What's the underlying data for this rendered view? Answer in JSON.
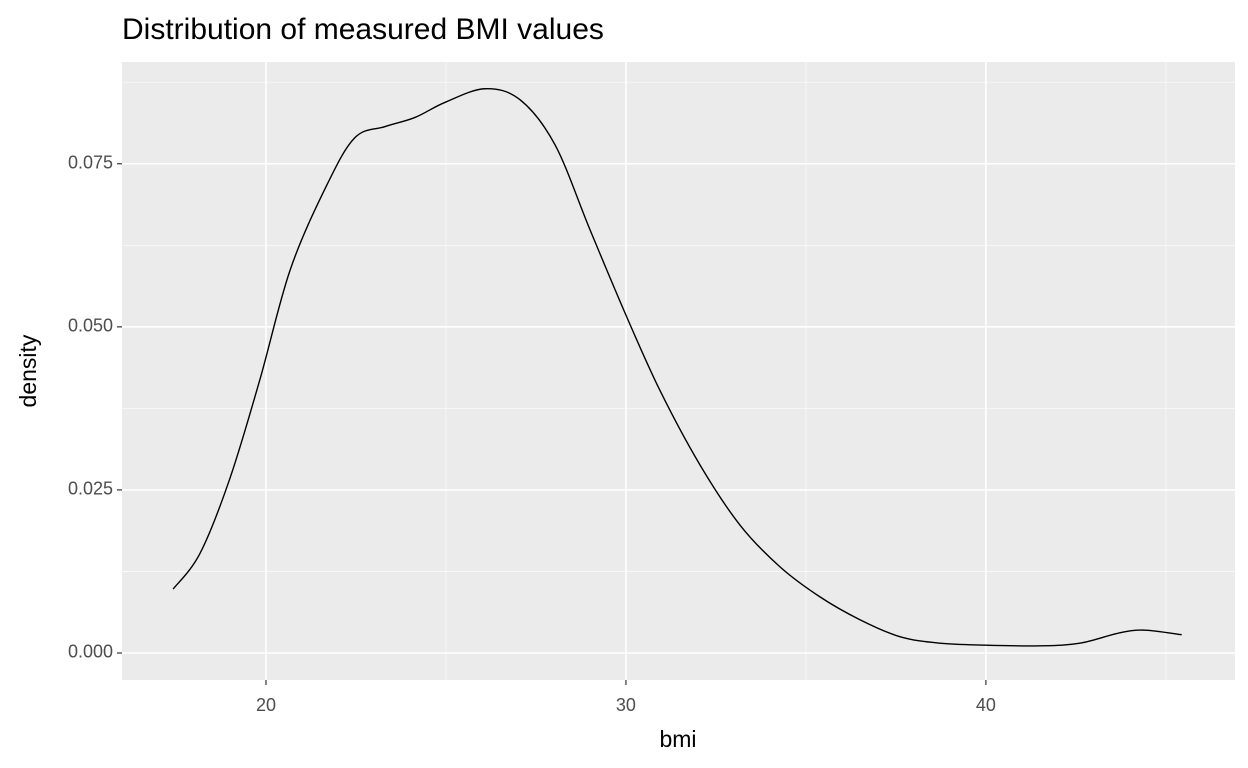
{
  "chart_data": {
    "type": "line",
    "title": "Distribution of measured BMI values",
    "x_label": "bmi",
    "y_label": "density",
    "x": [
      17.42,
      18.17,
      19.0,
      19.83,
      20.67,
      21.67,
      22.47,
      23.31,
      24.14,
      24.97,
      26.08,
      27.06,
      28.03,
      29.0,
      30.0,
      30.94,
      32.06,
      33.17,
      34.28,
      35.39,
      36.5,
      37.61,
      38.72,
      40.0,
      41.5,
      42.61,
      43.72,
      44.42,
      45.44
    ],
    "series": [
      {
        "name": "density",
        "color": "#000000",
        "values": [
          0.0098,
          0.0153,
          0.0268,
          0.0419,
          0.0587,
          0.0715,
          0.079,
          0.0807,
          0.0821,
          0.0844,
          0.0865,
          0.0848,
          0.0779,
          0.0649,
          0.0518,
          0.0403,
          0.0288,
          0.0196,
          0.0132,
          0.0086,
          0.0051,
          0.0025,
          0.0015,
          0.0012,
          0.0011,
          0.0015,
          0.0031,
          0.0035,
          0.0028
        ]
      }
    ],
    "xlim": [
      16.0,
      46.92
    ],
    "ylim": [
      -0.00414,
      0.0906
    ],
    "xticks": [
      20,
      30,
      40
    ],
    "yticks": [
      {
        "value": 0,
        "label": "0.000"
      },
      0.025,
      {
        "value": 0.05,
        "label": "0.050"
      },
      0.075
    ],
    "x_minor_ticks": [
      25,
      35,
      45
    ],
    "y_minor_ticks": [
      0.0125,
      0.0375,
      0.0625,
      0.0875
    ],
    "grid": true
  }
}
